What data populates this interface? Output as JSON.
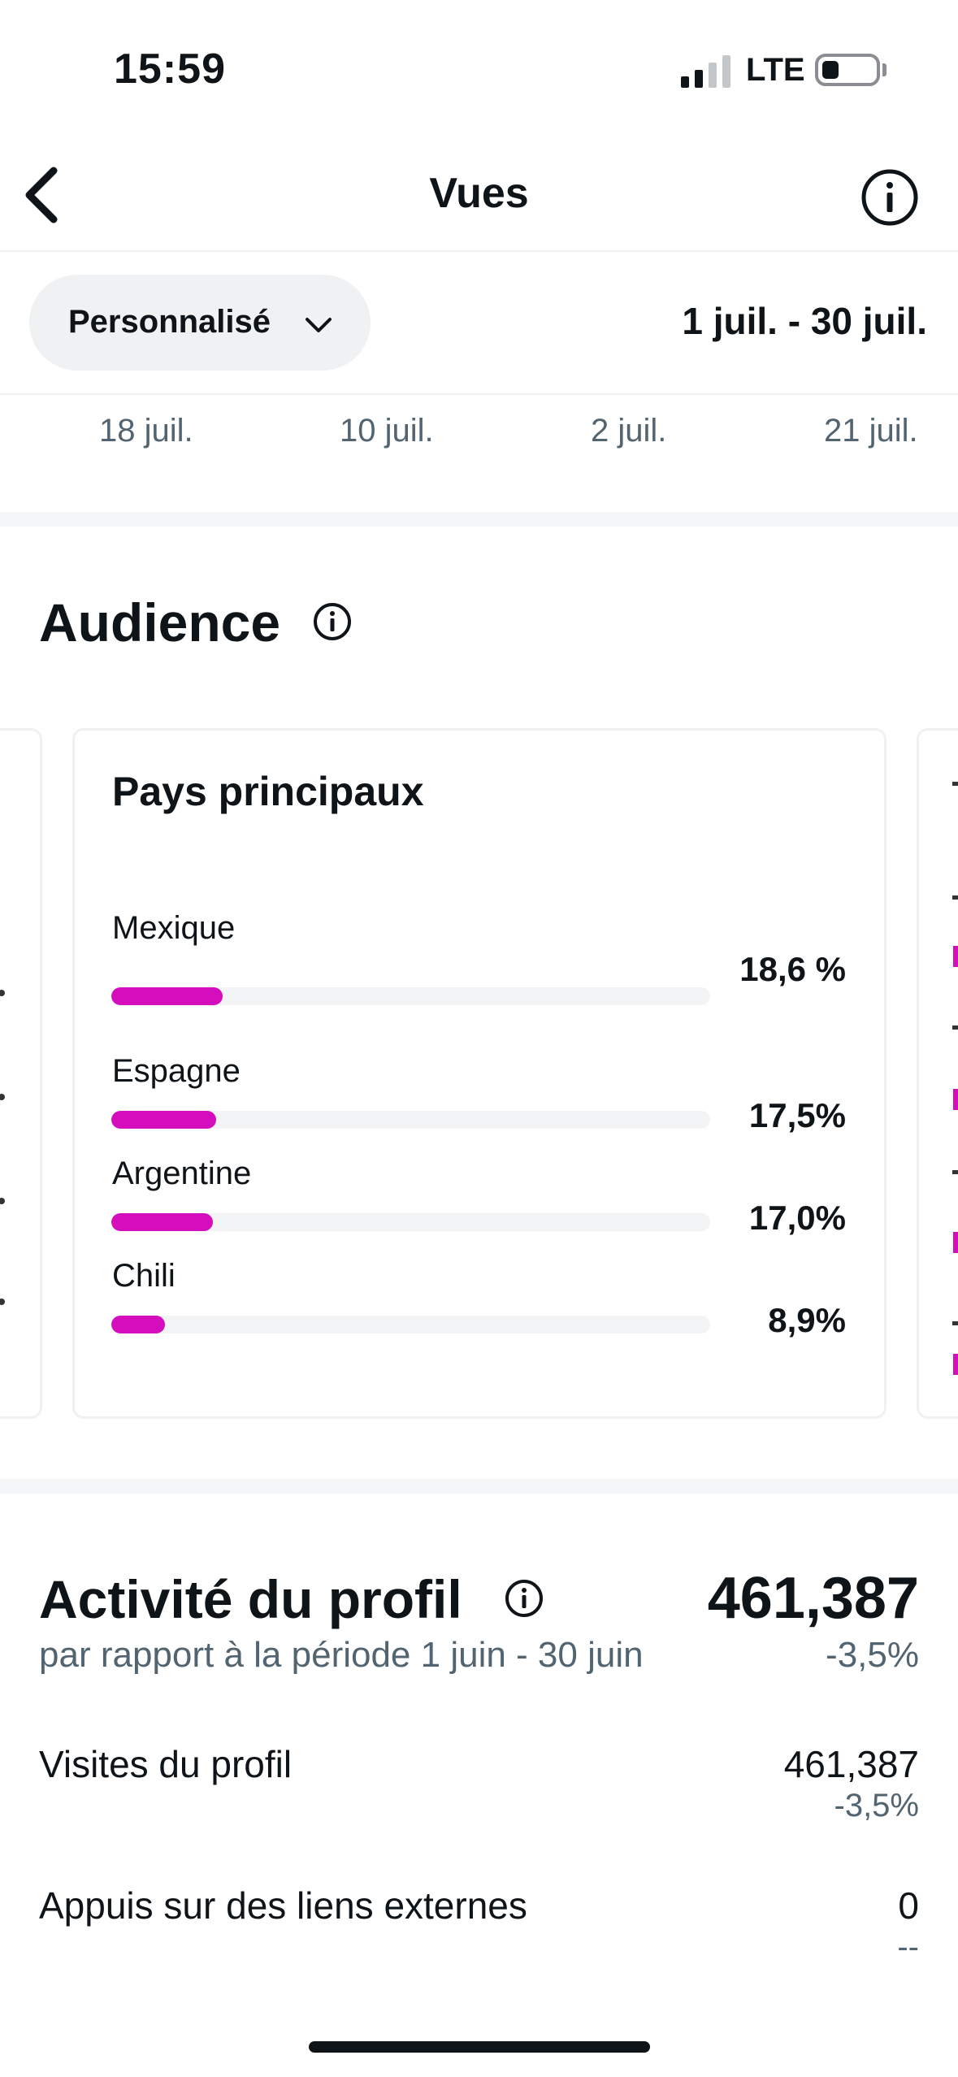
{
  "status_bar": {
    "time": "15:59",
    "network": "LTE"
  },
  "header": {
    "title": "Vues",
    "back_icon": "chevron-left-icon",
    "info_icon": "info-icon"
  },
  "filter": {
    "period_label": "Personnalisé",
    "date_range": "1 juil. - 30 juil."
  },
  "axis_ticks": [
    "18 juil.",
    "10 juil.",
    "2 juil.",
    "21 juil."
  ],
  "audience": {
    "title": "Audience",
    "card": {
      "title": "Pays principaux",
      "countries": [
        {
          "name": "Mexique",
          "percent_label": "18,6 %",
          "value": 18.6
        },
        {
          "name": "Espagne",
          "percent_label": "17,5%",
          "value": 17.5
        },
        {
          "name": "Argentine",
          "percent_label": "17,0%",
          "value": 17.0
        },
        {
          "name": "Chili",
          "percent_label": "8,9%",
          "value": 8.9
        }
      ]
    }
  },
  "profile_activity": {
    "title": "Activité du profil",
    "total": "461,387",
    "comparison_text": "par rapport à la période 1 juin - 30 juin",
    "total_change": "-3,5%",
    "rows": [
      {
        "label": "Visites du profil",
        "value": "461,387",
        "change": "-3,5%"
      },
      {
        "label": "Appuis sur des liens externes",
        "value": "0",
        "change": "--"
      }
    ]
  },
  "colors": {
    "accent": "#d40ebd",
    "text": "#0f1419",
    "secondary_text": "#536471",
    "track": "#f2f4f5"
  }
}
